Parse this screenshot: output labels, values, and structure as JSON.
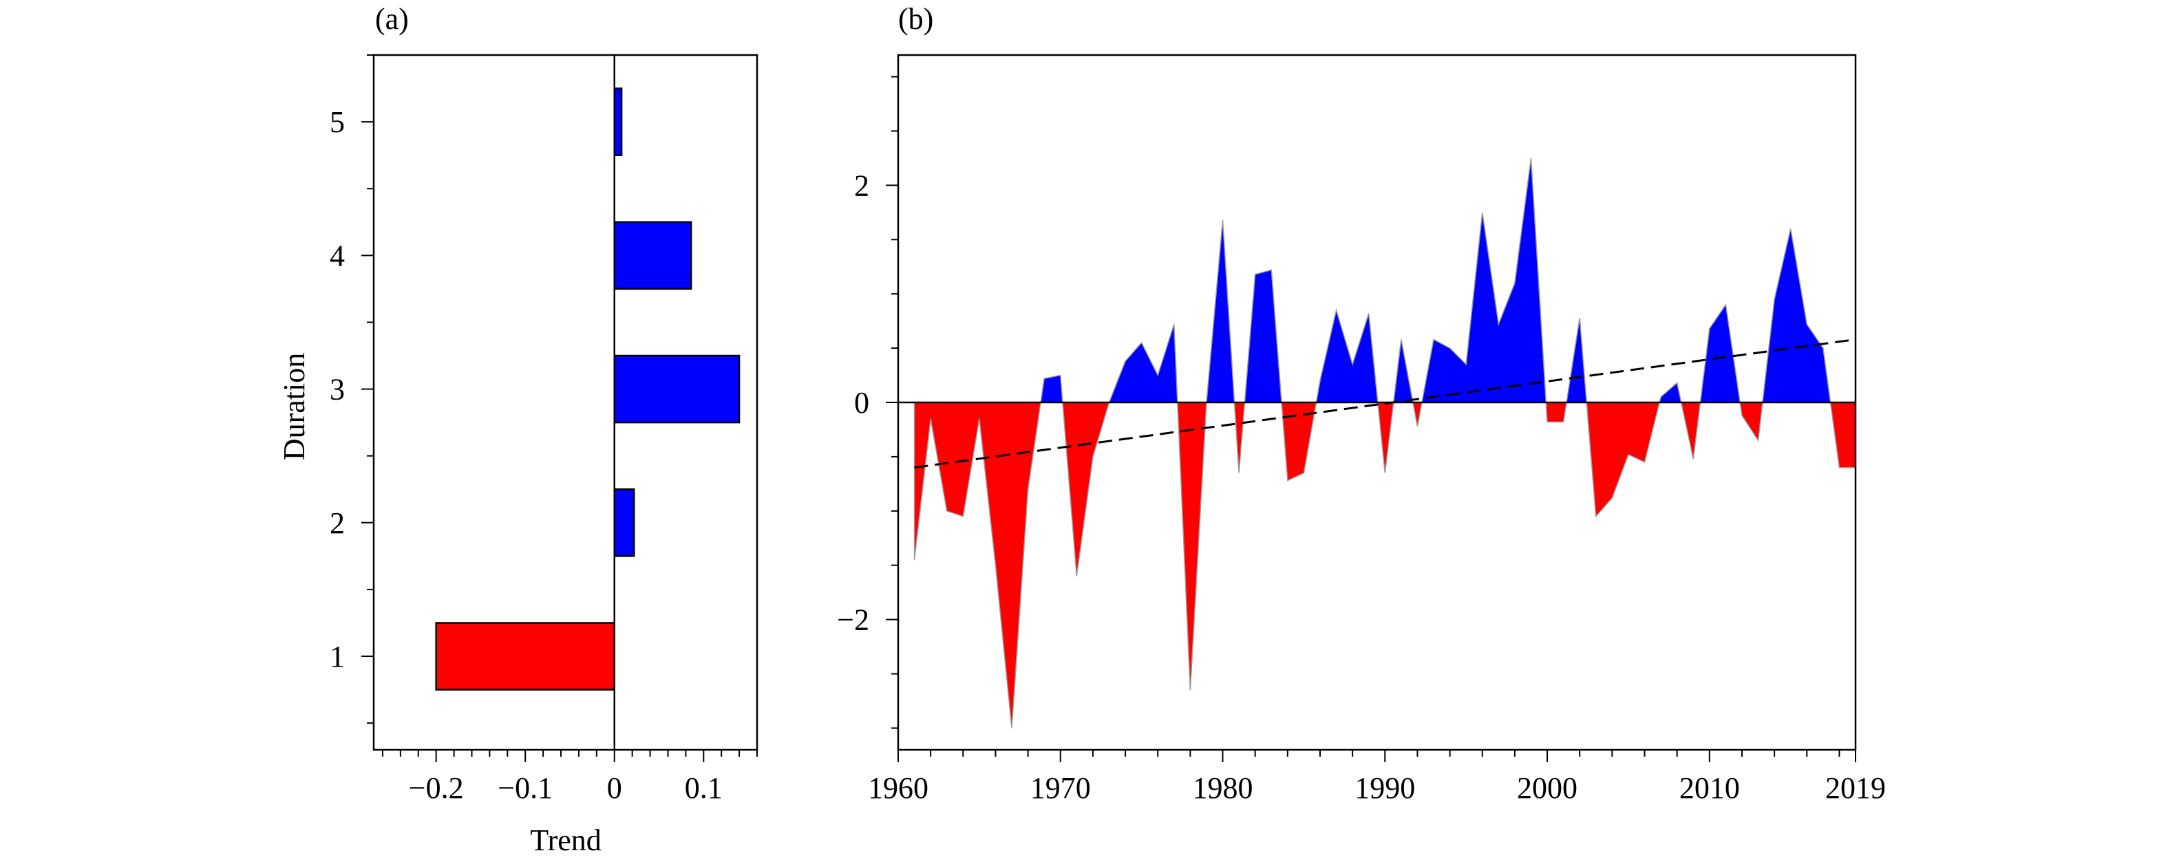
{
  "chart_data": [
    {
      "panel_label": "(a)",
      "type": "bar",
      "orientation": "horizontal",
      "categories": [
        "1",
        "2",
        "3",
        "4",
        "5"
      ],
      "values": [
        -0.2,
        0.022,
        0.14,
        0.086,
        0.008
      ],
      "xlabel": "Trend",
      "ylabel": "Duration",
      "xlim": [
        -0.27,
        0.16
      ],
      "ylim": [
        0.3,
        5.5
      ],
      "xticks": [
        -0.2,
        -0.1,
        0,
        0.1
      ],
      "xtick_labels": [
        "−0.2",
        "−0.1",
        "0",
        "0.1"
      ],
      "yticks": [
        1,
        2,
        3,
        4,
        5
      ],
      "ytick_labels": [
        "1",
        "2",
        "3",
        "4",
        "5"
      ],
      "grid": false,
      "colors": {
        "positive": "#0000ff",
        "negative": "#ff0000"
      }
    },
    {
      "panel_label": "(b)",
      "type": "area",
      "x": [
        1961,
        1962,
        1963,
        1964,
        1965,
        1966,
        1967,
        1968,
        1969,
        1970,
        1971,
        1972,
        1973,
        1974,
        1975,
        1976,
        1977,
        1978,
        1979,
        1980,
        1981,
        1982,
        1983,
        1984,
        1985,
        1986,
        1987,
        1988,
        1989,
        1990,
        1991,
        1992,
        1993,
        1994,
        1995,
        1996,
        1997,
        1998,
        1999,
        2000,
        2001,
        2002,
        2003,
        2004,
        2005,
        2006,
        2007,
        2008,
        2009,
        2010,
        2011,
        2012,
        2013,
        2014,
        2015,
        2016,
        2017,
        2018,
        2019
      ],
      "series": [
        {
          "values": [
            -1.45,
            -0.15,
            -1.0,
            -1.05,
            -0.15,
            -1.5,
            -3.0,
            -0.8,
            0.22,
            0.25,
            -1.6,
            -0.5,
            0.0,
            0.38,
            0.55,
            0.25,
            0.72,
            -2.65,
            0.0,
            1.68,
            -0.65,
            1.18,
            1.22,
            -0.72,
            -0.65,
            0.2,
            0.85,
            0.35,
            0.82,
            -0.65,
            0.58,
            -0.22,
            0.58,
            0.5,
            0.35,
            1.75,
            0.72,
            1.1,
            2.25,
            -0.18,
            -0.18,
            0.78,
            -1.05,
            -0.88,
            -0.48,
            -0.55,
            0.05,
            0.18,
            -0.52,
            0.68,
            0.9,
            -0.12,
            -0.35,
            0.95,
            1.6,
            0.72,
            0.5,
            -0.6,
            -0.6
          ]
        }
      ],
      "trend_line": {
        "x": [
          1961,
          2019
        ],
        "y": [
          -0.6,
          0.58
        ],
        "style": "dashed"
      },
      "xlim": [
        1960,
        2019
      ],
      "ylim": [
        -3.2,
        3.2
      ],
      "xticks": [
        1960,
        1970,
        1980,
        1990,
        2000,
        2010,
        2019
      ],
      "xtick_labels": [
        "1960",
        "1970",
        "1980",
        "1990",
        "2000",
        "2010",
        "2019"
      ],
      "yticks": [
        -2,
        0,
        2
      ],
      "ytick_labels": [
        "−2",
        "0",
        "2"
      ],
      "grid": false,
      "colors": {
        "positive": "#0000ff",
        "negative": "#ff0000",
        "trend": "#000000"
      }
    }
  ]
}
